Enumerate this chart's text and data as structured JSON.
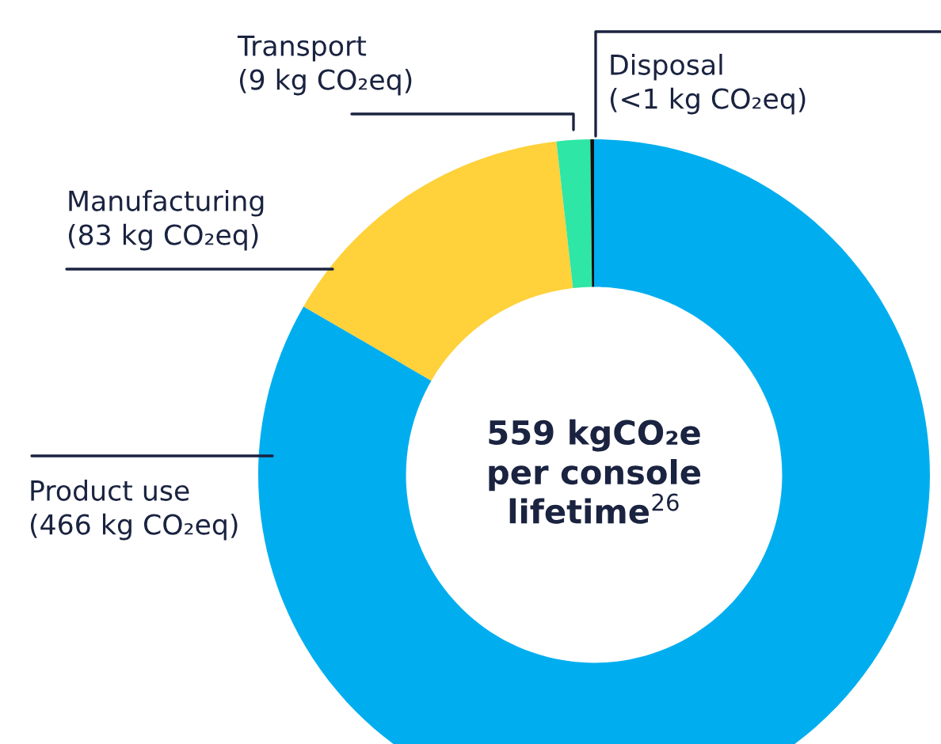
{
  "chart_data": {
    "type": "donut",
    "categories": [
      "Product use",
      "Manufacturing",
      "Transport",
      "Disposal"
    ],
    "values": [
      466,
      83,
      9,
      1
    ],
    "value_labels": [
      "(466 kg CO₂eq)",
      "(83 kg CO₂eq)",
      "(9 kg CO₂eq)",
      "(<1 kg CO₂eq)"
    ],
    "colors": [
      "#00aeef",
      "#ffd13a",
      "#2ee6a6",
      "#111111"
    ],
    "annotations": [
      "559 kgCO₂e\nper console\nlifetime$^{26}$"
    ],
    "legend": false
  }
}
